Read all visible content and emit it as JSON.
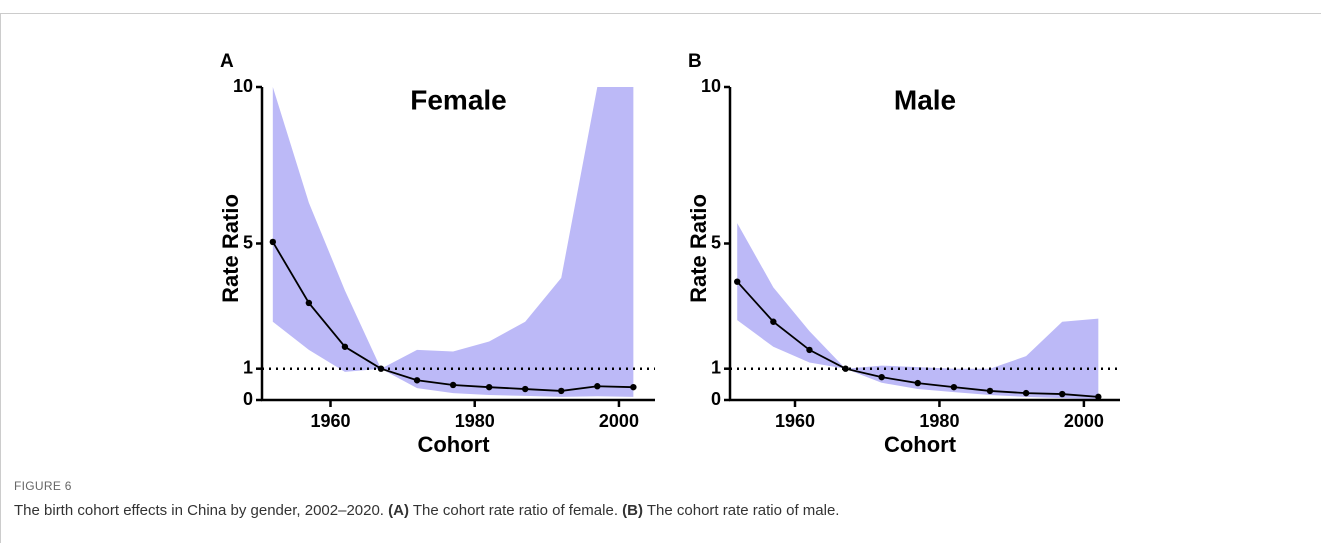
{
  "figure_label": "FIGURE 6",
  "caption": [
    "The birth cohort effects in China by gender, 2002–2020. ",
    "(A)",
    " The cohort rate ratio of female. ",
    "(B)",
    " The cohort rate ratio of male."
  ],
  "chart_data": [
    {
      "type": "line",
      "panel": "A",
      "title": "Female",
      "xlabel": "Cohort",
      "ylabel": "Rate Ratio",
      "x": [
        1952,
        1957,
        1962,
        1967,
        1972,
        1977,
        1982,
        1987,
        1992,
        1997,
        2002
      ],
      "values": [
        5.05,
        3.1,
        1.7,
        1.0,
        0.63,
        0.48,
        0.41,
        0.35,
        0.29,
        0.44,
        0.41
      ],
      "upper": [
        10,
        6.3,
        3.5,
        1.0,
        1.6,
        1.55,
        1.87,
        2.5,
        3.9,
        10,
        10
      ],
      "lower": [
        2.5,
        1.6,
        0.9,
        1.0,
        0.38,
        0.22,
        0.16,
        0.13,
        0.1,
        0.12,
        0.1
      ],
      "color": "#000000",
      "band_color": "#bcb9f7",
      "reference_line": 1,
      "xlim": [
        1950.5,
        2005
      ],
      "ylim": [
        0,
        10
      ],
      "xticks": [
        1960,
        1980,
        2000
      ],
      "yticks": [
        0,
        1,
        5,
        10
      ]
    },
    {
      "type": "line",
      "panel": "B",
      "title": "Male",
      "xlabel": "Cohort",
      "ylabel": "Rate Ratio",
      "x": [
        1952,
        1957,
        1962,
        1967,
        1972,
        1977,
        1982,
        1987,
        1992,
        1997,
        2002
      ],
      "values": [
        3.78,
        2.5,
        1.6,
        1.0,
        0.73,
        0.54,
        0.41,
        0.29,
        0.22,
        0.19,
        0.1
      ],
      "upper": [
        5.65,
        3.6,
        2.2,
        1.0,
        1.1,
        1.05,
        1.0,
        1.0,
        1.4,
        2.5,
        2.6
      ],
      "lower": [
        2.55,
        1.7,
        1.2,
        1.0,
        0.55,
        0.35,
        0.25,
        0.16,
        0.1,
        0.06,
        0.03
      ],
      "color": "#000000",
      "band_color": "#bcb9f7",
      "reference_line": 1,
      "xlim": [
        1951,
        2005
      ],
      "ylim": [
        0,
        10
      ],
      "xticks": [
        1960,
        1980,
        2000
      ],
      "yticks": [
        0,
        1,
        5,
        10
      ]
    }
  ]
}
